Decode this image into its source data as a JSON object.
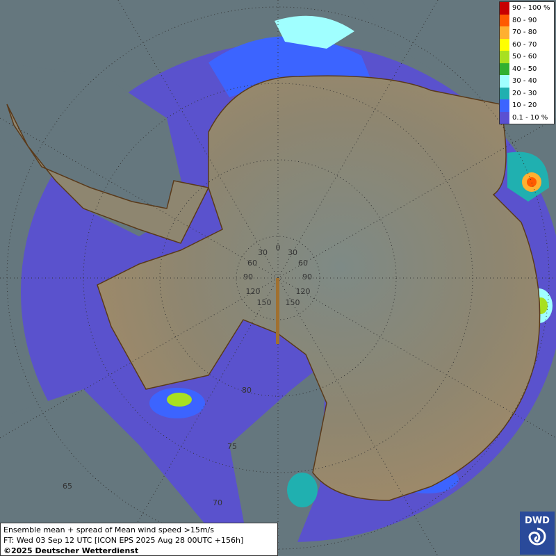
{
  "legend": [
    {
      "label": "90 - 100 %",
      "color": "#c80000"
    },
    {
      "label": "80 - 90",
      "color": "#ff5a00"
    },
    {
      "label": "70 - 80",
      "color": "#ffb030"
    },
    {
      "label": "60 - 70",
      "color": "#ffff00"
    },
    {
      "label": "50 - 60",
      "color": "#a8e020"
    },
    {
      "label": "40 - 50",
      "color": "#30b030"
    },
    {
      "label": "30 - 40",
      "color": "#a0ffff"
    },
    {
      "label": "20 - 30",
      "color": "#20b0b0"
    },
    {
      "label": "10 - 20",
      "color": "#3c64ff"
    },
    {
      "label": "0.1 - 10 %",
      "color": "#5a50d2"
    }
  ],
  "caption": {
    "line1": "Ensemble mean + spread of Mean wind speed >15m/s",
    "line2": "FT: Wed 03 Sep 12 UTC [ICON EPS 2025 Aug 28 00UTC +156h]",
    "line3": "©2025 Deutscher Wetterdienst"
  },
  "logo": "DWD",
  "graticule_labels": {
    "longitude": [
      "0",
      "30",
      "30",
      "60",
      "60",
      "90",
      "90",
      "120",
      "120",
      "150",
      "150"
    ],
    "latitude": [
      "80",
      "75",
      "70",
      "65"
    ]
  }
}
